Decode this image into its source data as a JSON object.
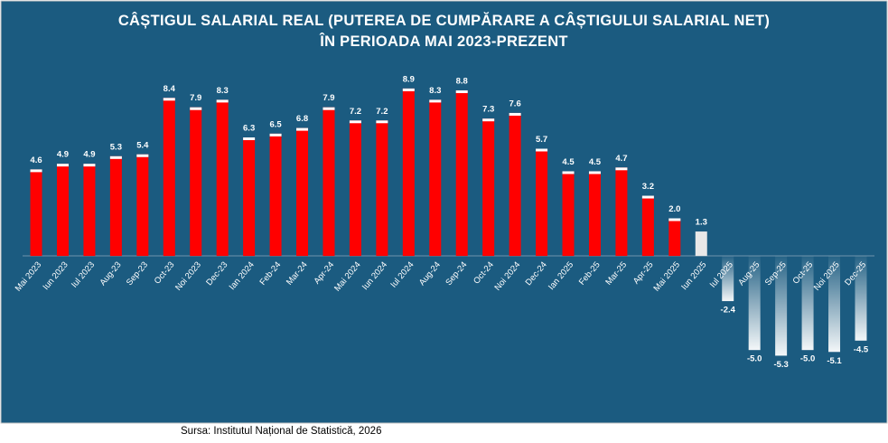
{
  "chart_data": {
    "type": "bar",
    "title": "CÂȘTIGUL SALARIAL REAL (PUTEREA DE CUMPĂRARE A CÂȘTIGULUI SALARIAL NET) ÎN PERIOADA MAI 2023-PREZENT",
    "source": "Sursa: Institutul Național de Statistică, 2026",
    "categories": [
      "Mai 2023",
      "Iun 2023",
      "Iul 2023",
      "Aug-23",
      "Sep-23",
      "Oct-23",
      "Noi 2023",
      "Dec-23",
      "Ian 2024",
      "Feb-24",
      "Mar-24",
      "Apr-24",
      "Mai 2024",
      "Iun 2024",
      "Iul 2024",
      "Aug-24",
      "Sep-24",
      "Oct-24",
      "Noi 2024",
      "Dec-24",
      "Ian 2025",
      "Feb-25",
      "Mar-25",
      "Apr-25",
      "Mai 2025",
      "Iun 2025",
      "Iul 2025",
      "Aug-25",
      "Sep-25",
      "Oct-25",
      "Noi 2025",
      "Dec-25"
    ],
    "values": [
      4.6,
      4.9,
      4.9,
      5.3,
      5.4,
      8.4,
      7.9,
      8.3,
      6.3,
      6.5,
      6.8,
      7.9,
      7.2,
      7.2,
      8.9,
      8.3,
      8.8,
      7.3,
      7.6,
      5.7,
      4.5,
      4.5,
      4.7,
      3.2,
      2.0,
      1.3,
      -2.4,
      -5.0,
      -5.3,
      -5.0,
      -5.1,
      -4.5
    ],
    "value_labels": [
      "4.6",
      "4.9",
      "4.9",
      "5.3",
      "5.4",
      "8.4",
      "7.9",
      "8.3",
      "6.3",
      "6.5",
      "6.8",
      "7.9",
      "7.2",
      "7.2",
      "8.9",
      "8.3",
      "8.8",
      "7.3",
      "7.6",
      "5.7",
      "4.5",
      "4.5",
      "4.7",
      "3.2",
      "2.0",
      "1.3",
      "-2.4",
      "-5.0",
      "-5.3",
      "-5.0",
      "-5.1",
      "-4.5"
    ],
    "colors": [
      "#ff0000",
      "#ff0000",
      "#ff0000",
      "#ff0000",
      "#ff0000",
      "#ff0000",
      "#ff0000",
      "#ff0000",
      "#ff0000",
      "#ff0000",
      "#ff0000",
      "#ff0000",
      "#ff0000",
      "#ff0000",
      "#ff0000",
      "#ff0000",
      "#ff0000",
      "#ff0000",
      "#ff0000",
      "#ff0000",
      "#ff0000",
      "#ff0000",
      "#ff0000",
      "#ff0000",
      "#ff0000",
      "#e8e8e8",
      "#ffffff",
      "#ffffff",
      "#ffffff",
      "#ffffff",
      "#ffffff",
      "#ffffff"
    ],
    "ylim": [
      -6,
      10
    ]
  }
}
